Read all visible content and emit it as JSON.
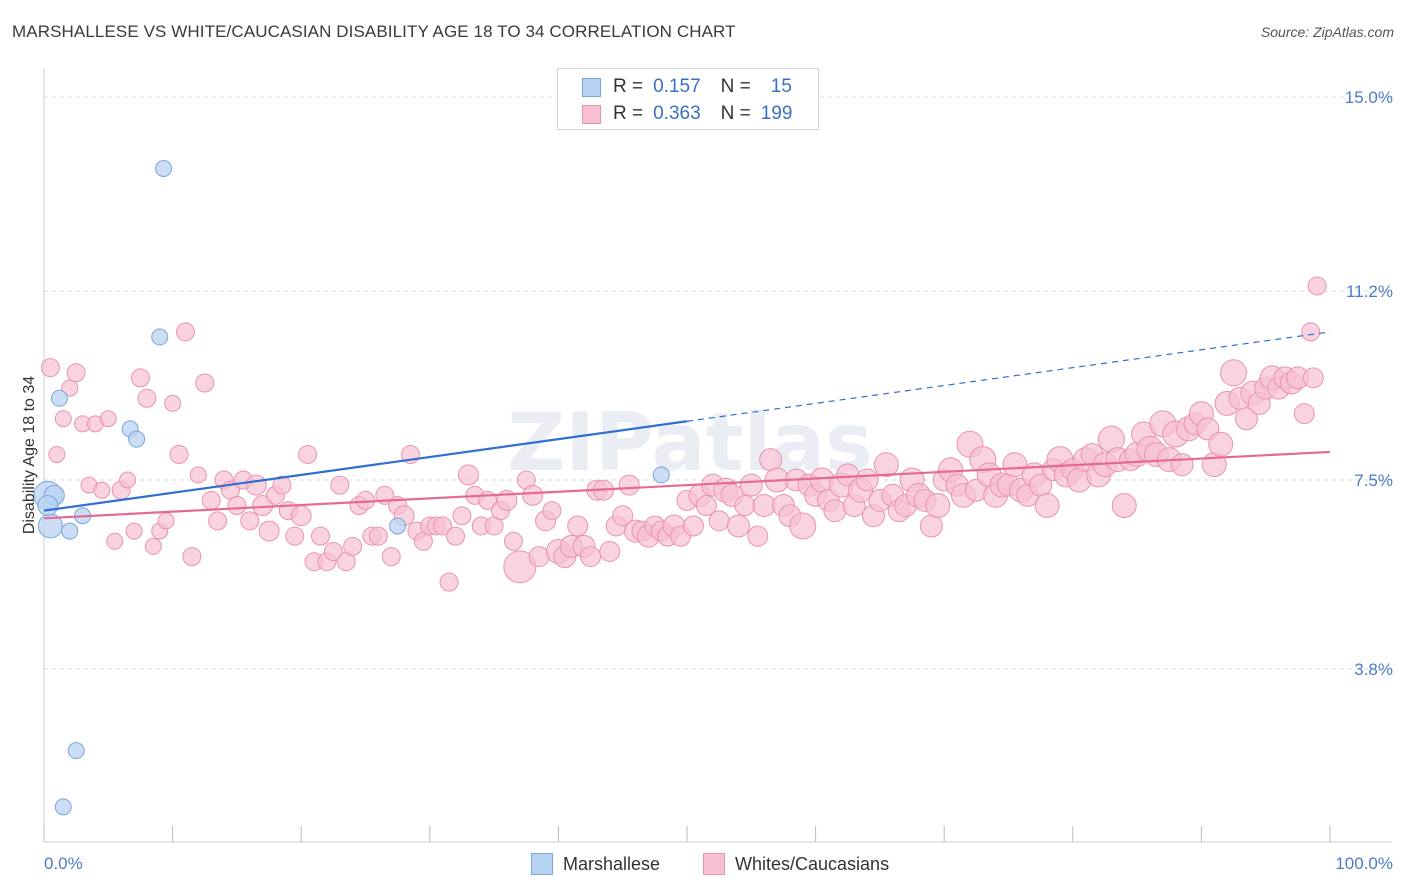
{
  "header": {
    "title": "MARSHALLESE VS WHITE/CAUCASIAN DISABILITY AGE 18 TO 34 CORRELATION CHART",
    "source": "Source: ZipAtlas.com"
  },
  "legend": {
    "rows": [
      {
        "r_label": "R =",
        "r_value": "0.157",
        "n_label": "N =",
        "n_value": "15"
      },
      {
        "r_label": "R =",
        "r_value": "0.363",
        "n_label": "N =",
        "n_value": "199"
      }
    ]
  },
  "bottom_legend": {
    "items": [
      {
        "label": "Marshallese"
      },
      {
        "label": "Whites/Caucasians"
      }
    ]
  },
  "watermark": "ZIPatlas",
  "colors": {
    "blue_fill": "#b9d3f3",
    "blue_stroke": "#7aa6dc",
    "blue_line": "#2f6fcf",
    "pink_fill": "#f7c0d1",
    "pink_stroke": "#ea93b0",
    "pink_line": "#e46a95",
    "accent_text": "#4a7cc7",
    "grid": "#d9d9d9"
  },
  "chart_data": {
    "type": "scatter",
    "title": "MARSHALLESE VS WHITE/CAUCASIAN DISABILITY AGE 18 TO 34 CORRELATION CHART",
    "xlabel": "",
    "ylabel": "Disability Age 18 to 34",
    "xlim": [
      0,
      100
    ],
    "ylim": [
      0,
      15.5
    ],
    "y_ticks": [
      {
        "value": 3.8,
        "label": "3.8%"
      },
      {
        "value": 7.5,
        "label": "7.5%"
      },
      {
        "value": 11.2,
        "label": "11.2%"
      },
      {
        "value": 15.0,
        "label": "15.0%"
      }
    ],
    "x_tick_labels": [
      {
        "value": 0,
        "label": "0.0%"
      },
      {
        "value": 100,
        "label": "100.0%"
      }
    ],
    "grid": true,
    "legend_position": "top-center",
    "series": [
      {
        "name": "Marshallese",
        "points": [
          [
            0.3,
            7.2,
            14
          ],
          [
            0.5,
            6.6,
            12
          ],
          [
            0.8,
            7.2,
            10
          ],
          [
            1.2,
            9.1,
            8
          ],
          [
            1.5,
            1.1,
            8
          ],
          [
            2.0,
            6.5,
            8
          ],
          [
            2.5,
            2.2,
            8
          ],
          [
            3.0,
            6.8,
            8
          ],
          [
            6.7,
            8.5,
            8
          ],
          [
            7.2,
            8.3,
            8
          ],
          [
            9.0,
            10.3,
            8
          ],
          [
            9.3,
            13.6,
            8
          ],
          [
            27.5,
            6.6,
            8
          ],
          [
            48.0,
            7.6,
            8
          ],
          [
            0.3,
            7.0,
            10
          ]
        ],
        "trend": {
          "x0": 0,
          "y0": 6.9,
          "x1": 50,
          "y1": 8.65,
          "x_dash_end": 100,
          "y_dash_end": 10.4
        }
      },
      {
        "name": "Whites/Caucasians",
        "points": [
          [
            0.5,
            9.7,
            9
          ],
          [
            1.0,
            8.0,
            8
          ],
          [
            1.5,
            8.7,
            8
          ],
          [
            2.0,
            9.3,
            8
          ],
          [
            2.5,
            9.6,
            9
          ],
          [
            3.0,
            8.6,
            8
          ],
          [
            3.5,
            7.4,
            8
          ],
          [
            4.0,
            8.6,
            8
          ],
          [
            4.5,
            7.3,
            8
          ],
          [
            5.0,
            8.7,
            8
          ],
          [
            5.5,
            6.3,
            8
          ],
          [
            6.0,
            7.3,
            9
          ],
          [
            6.5,
            7.5,
            8
          ],
          [
            7.0,
            6.5,
            8
          ],
          [
            7.5,
            9.5,
            9
          ],
          [
            8.0,
            9.1,
            9
          ],
          [
            8.5,
            6.2,
            8
          ],
          [
            9.0,
            6.5,
            8
          ],
          [
            9.5,
            6.7,
            8
          ],
          [
            10.0,
            9.0,
            8
          ],
          [
            10.5,
            8.0,
            9
          ],
          [
            11.0,
            10.4,
            9
          ],
          [
            11.5,
            6.0,
            9
          ],
          [
            12.0,
            7.6,
            8
          ],
          [
            12.5,
            9.4,
            9
          ],
          [
            13.0,
            7.1,
            9
          ],
          [
            13.5,
            6.7,
            9
          ],
          [
            14.0,
            7.5,
            9
          ],
          [
            14.5,
            7.3,
            9
          ],
          [
            15.0,
            7.0,
            9
          ],
          [
            15.5,
            7.5,
            9
          ],
          [
            16.0,
            6.7,
            9
          ],
          [
            16.5,
            7.4,
            10
          ],
          [
            17.0,
            7.0,
            10
          ],
          [
            17.5,
            6.5,
            10
          ],
          [
            18.0,
            7.2,
            9
          ],
          [
            18.5,
            7.4,
            9
          ],
          [
            19.0,
            6.9,
            9
          ],
          [
            19.5,
            6.4,
            9
          ],
          [
            20.0,
            6.8,
            10
          ],
          [
            20.5,
            8.0,
            9
          ],
          [
            21.0,
            5.9,
            9
          ],
          [
            21.5,
            6.4,
            9
          ],
          [
            22.0,
            5.9,
            9
          ],
          [
            22.5,
            6.1,
            9
          ],
          [
            23.0,
            7.4,
            9
          ],
          [
            23.5,
            5.9,
            9
          ],
          [
            24.0,
            6.2,
            9
          ],
          [
            24.5,
            7.0,
            9
          ],
          [
            25.0,
            7.1,
            9
          ],
          [
            25.5,
            6.4,
            9
          ],
          [
            26.0,
            6.4,
            9
          ],
          [
            26.5,
            7.2,
            9
          ],
          [
            27.0,
            6.0,
            9
          ],
          [
            27.5,
            7.0,
            9
          ],
          [
            28.0,
            6.8,
            10
          ],
          [
            28.5,
            8.0,
            9
          ],
          [
            29.0,
            6.5,
            9
          ],
          [
            29.5,
            6.3,
            9
          ],
          [
            30.0,
            6.6,
            9
          ],
          [
            30.5,
            6.6,
            9
          ],
          [
            31.0,
            6.6,
            9
          ],
          [
            31.5,
            5.5,
            9
          ],
          [
            32.0,
            6.4,
            9
          ],
          [
            32.5,
            6.8,
            9
          ],
          [
            33.0,
            7.6,
            10
          ],
          [
            33.5,
            7.2,
            9
          ],
          [
            34.0,
            6.6,
            9
          ],
          [
            34.5,
            7.1,
            9
          ],
          [
            35.0,
            6.6,
            9
          ],
          [
            35.5,
            6.9,
            9
          ],
          [
            36.0,
            7.1,
            10
          ],
          [
            36.5,
            6.3,
            9
          ],
          [
            37.0,
            5.8,
            16
          ],
          [
            37.5,
            7.5,
            9
          ],
          [
            38.0,
            7.2,
            10
          ],
          [
            38.5,
            6.0,
            10
          ],
          [
            39.0,
            6.7,
            10
          ],
          [
            39.5,
            6.9,
            9
          ],
          [
            40.0,
            6.1,
            12
          ],
          [
            40.5,
            6.0,
            11
          ],
          [
            41.0,
            6.2,
            11
          ],
          [
            41.5,
            6.6,
            10
          ],
          [
            42.0,
            6.2,
            11
          ],
          [
            42.5,
            6.0,
            10
          ],
          [
            43.0,
            7.3,
            10
          ],
          [
            43.5,
            7.3,
            10
          ],
          [
            44.0,
            6.1,
            10
          ],
          [
            44.5,
            6.6,
            10
          ],
          [
            45.0,
            6.8,
            10
          ],
          [
            45.5,
            7.4,
            10
          ],
          [
            46.0,
            6.5,
            11
          ],
          [
            46.5,
            6.5,
            10
          ],
          [
            47.0,
            6.4,
            11
          ],
          [
            47.5,
            6.6,
            10
          ],
          [
            48.0,
            6.5,
            10
          ],
          [
            48.5,
            6.4,
            10
          ],
          [
            49.0,
            6.6,
            11
          ],
          [
            49.5,
            6.4,
            10
          ],
          [
            50.0,
            7.1,
            10
          ],
          [
            50.5,
            6.6,
            10
          ],
          [
            51.0,
            7.2,
            11
          ],
          [
            51.5,
            7.0,
            10
          ],
          [
            52.0,
            7.4,
            11
          ],
          [
            52.5,
            6.7,
            10
          ],
          [
            53.0,
            7.3,
            12
          ],
          [
            53.5,
            7.2,
            11
          ],
          [
            54.0,
            6.6,
            11
          ],
          [
            54.5,
            7.0,
            10
          ],
          [
            55.0,
            7.4,
            11
          ],
          [
            55.5,
            6.4,
            10
          ],
          [
            56.0,
            7.0,
            11
          ],
          [
            56.5,
            7.9,
            11
          ],
          [
            57.0,
            7.5,
            12
          ],
          [
            57.5,
            7.0,
            11
          ],
          [
            58.0,
            6.8,
            11
          ],
          [
            58.5,
            7.5,
            11
          ],
          [
            59.0,
            6.6,
            13
          ],
          [
            59.5,
            7.4,
            11
          ],
          [
            60.0,
            7.2,
            11
          ],
          [
            60.5,
            7.5,
            12
          ],
          [
            61.0,
            7.1,
            11
          ],
          [
            61.5,
            6.9,
            11
          ],
          [
            62.0,
            7.4,
            12
          ],
          [
            62.5,
            7.6,
            11
          ],
          [
            63.0,
            7.0,
            11
          ],
          [
            63.5,
            7.3,
            12
          ],
          [
            64.0,
            7.5,
            11
          ],
          [
            64.5,
            6.8,
            11
          ],
          [
            65.0,
            7.1,
            11
          ],
          [
            65.5,
            7.8,
            12
          ],
          [
            66.0,
            7.2,
            11
          ],
          [
            66.5,
            6.9,
            11
          ],
          [
            67.0,
            7.0,
            11
          ],
          [
            67.5,
            7.5,
            12
          ],
          [
            68.0,
            7.2,
            12
          ],
          [
            68.5,
            7.1,
            11
          ],
          [
            69.0,
            6.6,
            11
          ],
          [
            69.5,
            7.0,
            12
          ],
          [
            70.0,
            7.5,
            11
          ],
          [
            70.5,
            7.7,
            12
          ],
          [
            71.0,
            7.4,
            11
          ],
          [
            71.5,
            7.2,
            12
          ],
          [
            72.0,
            8.2,
            13
          ],
          [
            72.5,
            7.3,
            11
          ],
          [
            73.0,
            7.9,
            13
          ],
          [
            73.5,
            7.6,
            12
          ],
          [
            74.0,
            7.2,
            12
          ],
          [
            74.5,
            7.4,
            12
          ],
          [
            75.0,
            7.4,
            11
          ],
          [
            75.5,
            7.8,
            12
          ],
          [
            76.0,
            7.3,
            12
          ],
          [
            76.5,
            7.2,
            11
          ],
          [
            77.0,
            7.6,
            12
          ],
          [
            77.5,
            7.4,
            11
          ],
          [
            78.0,
            7.0,
            12
          ],
          [
            78.5,
            7.7,
            11
          ],
          [
            79.0,
            7.9,
            13
          ],
          [
            79.5,
            7.6,
            12
          ],
          [
            80.0,
            7.7,
            11
          ],
          [
            80.5,
            7.5,
            12
          ],
          [
            81.0,
            7.9,
            12
          ],
          [
            81.5,
            8.0,
            11
          ],
          [
            82.0,
            7.6,
            12
          ],
          [
            82.5,
            7.8,
            12
          ],
          [
            83.0,
            8.3,
            13
          ],
          [
            83.5,
            7.9,
            12
          ],
          [
            84.0,
            7.0,
            12
          ],
          [
            84.5,
            7.9,
            11
          ],
          [
            85.0,
            8.0,
            12
          ],
          [
            85.5,
            8.4,
            12
          ],
          [
            86.0,
            8.1,
            13
          ],
          [
            86.5,
            8.0,
            12
          ],
          [
            87.0,
            8.6,
            13
          ],
          [
            87.5,
            7.9,
            12
          ],
          [
            88.0,
            8.4,
            13
          ],
          [
            88.5,
            7.8,
            11
          ],
          [
            89.0,
            8.5,
            12
          ],
          [
            89.5,
            8.6,
            11
          ],
          [
            90.0,
            8.8,
            12
          ],
          [
            90.5,
            8.5,
            11
          ],
          [
            91.0,
            7.8,
            12
          ],
          [
            91.5,
            8.2,
            12
          ],
          [
            92.0,
            9.0,
            12
          ],
          [
            92.5,
            9.6,
            13
          ],
          [
            93.0,
            9.1,
            11
          ],
          [
            93.5,
            8.7,
            11
          ],
          [
            94.0,
            9.2,
            12
          ],
          [
            94.5,
            9.0,
            11
          ],
          [
            95.0,
            9.3,
            11
          ],
          [
            95.5,
            9.5,
            12
          ],
          [
            96.0,
            9.3,
            11
          ],
          [
            96.5,
            9.5,
            11
          ],
          [
            97.0,
            9.4,
            11
          ],
          [
            97.5,
            9.5,
            11
          ],
          [
            98.0,
            8.8,
            10
          ],
          [
            98.5,
            10.4,
            9
          ],
          [
            99.0,
            11.3,
            9
          ],
          [
            98.7,
            9.5,
            10
          ]
        ],
        "trend": {
          "x0": 0,
          "y0": 6.75,
          "x1": 100,
          "y1": 8.05
        }
      }
    ]
  }
}
